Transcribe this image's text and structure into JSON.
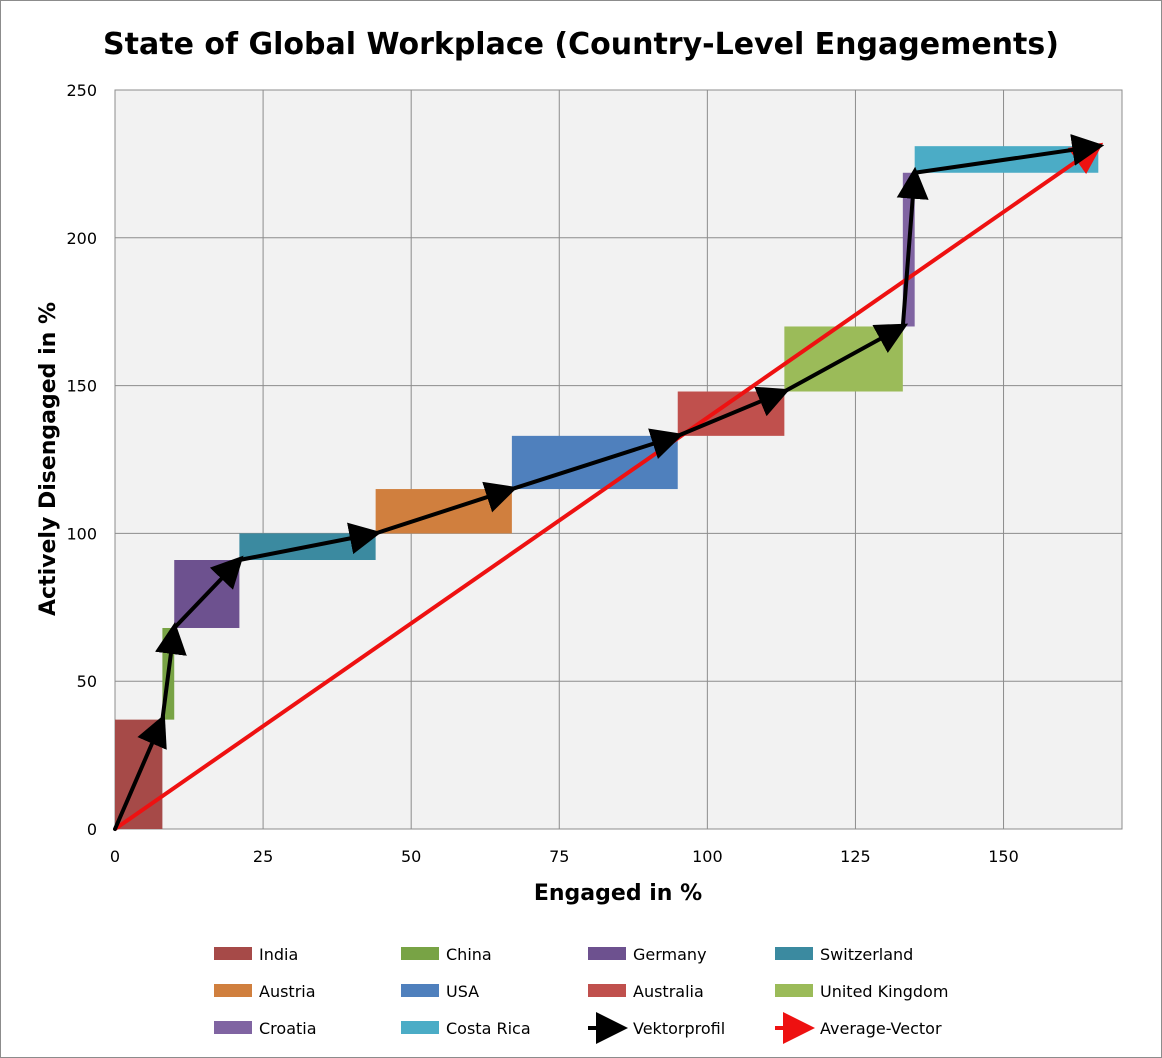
{
  "chart_data": {
    "type": "bar",
    "title": "State of Global Workplace (Country-Level Engagements)",
    "xlabel": "Engaged in %",
    "ylabel": "Actively Disengaged in %",
    "xlim": [
      0,
      170
    ],
    "ylim": [
      0,
      250
    ],
    "x_ticks": [
      0,
      25,
      50,
      75,
      100,
      125,
      150
    ],
    "y_ticks": [
      0,
      50,
      100,
      150,
      200,
      250
    ],
    "grid": true,
    "legend_position": "bottom",
    "countries": [
      {
        "name": "India",
        "engaged": 8,
        "actively_disengaged": 37,
        "color": "#a64a48"
      },
      {
        "name": "China",
        "engaged": 2,
        "actively_disengaged": 31,
        "color": "#78a345"
      },
      {
        "name": "Germany",
        "engaged": 11,
        "actively_disengaged": 23,
        "color": "#6d518f"
      },
      {
        "name": "Switzerland",
        "engaged": 23,
        "actively_disengaged": 9,
        "color": "#3b8aa0"
      },
      {
        "name": "Austria",
        "engaged": 23,
        "actively_disengaged": 15,
        "color": "#d07f3e"
      },
      {
        "name": "USA",
        "engaged": 28,
        "actively_disengaged": 18,
        "color": "#4f80bd"
      },
      {
        "name": "Australia",
        "engaged": 18,
        "actively_disengaged": 15,
        "color": "#c0504d"
      },
      {
        "name": "United Kingdom",
        "engaged": 20,
        "actively_disengaged": 22,
        "color": "#9bbb59"
      },
      {
        "name": "Croatia",
        "engaged": 2,
        "actively_disengaged": 52,
        "color": "#8064a2"
      },
      {
        "name": "Costa Rica",
        "engaged": 31,
        "actively_disengaged": 9,
        "color": "#4bacc6"
      }
    ],
    "vector_series": [
      {
        "name": "Vektorprofil",
        "color": "#000000",
        "note_type": "cumulative-path"
      },
      {
        "name": "Average-Vector",
        "color": "#ee1111",
        "note_type": "origin-to-end"
      }
    ],
    "legend": [
      "India",
      "China",
      "Germany",
      "Switzerland",
      "Austria",
      "USA",
      "Australia",
      "United Kingdom",
      "Croatia",
      "Costa Rica",
      "Vektorprofil",
      "Average-Vector"
    ]
  }
}
